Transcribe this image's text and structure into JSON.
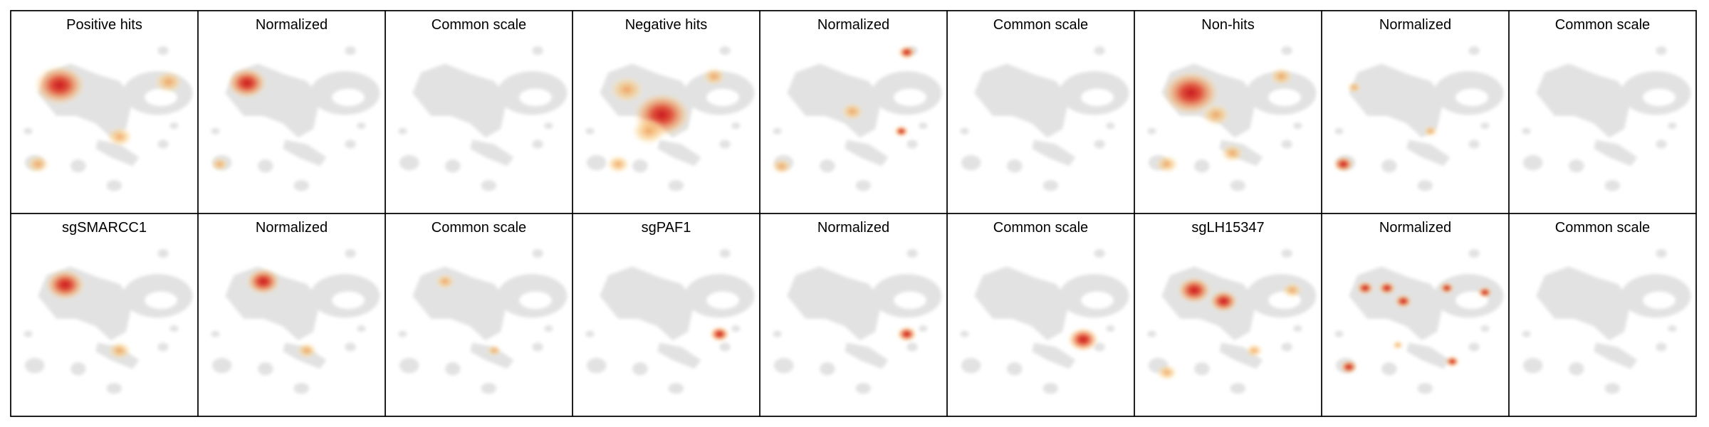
{
  "chart_data": [
    {
      "type": "density",
      "title": "Positive hits"
    },
    {
      "type": "density",
      "title": "Normalized"
    },
    {
      "type": "density",
      "title": "Common scale"
    },
    {
      "type": "density",
      "title": "Negative hits"
    },
    {
      "type": "density",
      "title": "Normalized"
    },
    {
      "type": "density",
      "title": "Common scale"
    },
    {
      "type": "density",
      "title": "Non-hits"
    },
    {
      "type": "density",
      "title": "Normalized"
    },
    {
      "type": "density",
      "title": "Common scale"
    },
    {
      "type": "density",
      "title": "sgSMARCC1"
    },
    {
      "type": "density",
      "title": "Normalized"
    },
    {
      "type": "density",
      "title": "Common scale"
    },
    {
      "type": "density",
      "title": "sgPAF1"
    },
    {
      "type": "density",
      "title": "Normalized"
    },
    {
      "type": "density",
      "title": "Common scale"
    },
    {
      "type": "density",
      "title": "sgLH15347"
    },
    {
      "type": "density",
      "title": "Normalized"
    },
    {
      "type": "density",
      "title": "Common scale"
    }
  ]
}
